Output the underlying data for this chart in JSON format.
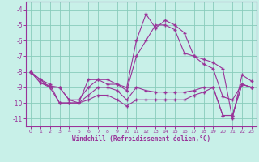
{
  "xlabel": "Windchill (Refroidissement éolien,°C)",
  "background_color": "#c8f0e8",
  "grid_color": "#88ccbb",
  "line_color": "#993399",
  "hours": [
    0,
    1,
    2,
    3,
    4,
    5,
    6,
    7,
    8,
    9,
    10,
    11,
    12,
    13,
    14,
    15,
    16,
    17,
    18,
    19,
    20,
    21,
    22,
    23
  ],
  "curve1": [
    -8.0,
    -8.5,
    -8.8,
    -10.0,
    -10.0,
    -10.0,
    -8.5,
    -8.5,
    -8.8,
    -8.8,
    -9.0,
    -6.0,
    -4.3,
    -5.2,
    -4.7,
    -5.0,
    -5.5,
    -7.0,
    -7.2,
    -7.4,
    -7.8,
    -11.0,
    -8.2,
    -8.6
  ],
  "curve2": [
    -8.0,
    -8.7,
    -8.9,
    -9.0,
    -9.8,
    -9.8,
    -9.0,
    -8.5,
    -8.5,
    -8.8,
    -9.2,
    -7.0,
    -6.0,
    -5.0,
    -5.0,
    -5.3,
    -6.8,
    -7.0,
    -7.5,
    -7.8,
    -9.6,
    -9.8,
    -8.8,
    -9.0
  ],
  "curve3": [
    -8.0,
    -8.7,
    -9.0,
    -9.0,
    -9.8,
    -10.0,
    -9.5,
    -9.0,
    -9.0,
    -9.2,
    -9.8,
    -9.0,
    -9.2,
    -9.3,
    -9.3,
    -9.3,
    -9.3,
    -9.2,
    -9.0,
    -9.0,
    -10.8,
    -10.8,
    -8.8,
    -9.0
  ],
  "curve4": [
    -8.0,
    -8.5,
    -9.0,
    -10.0,
    -10.0,
    -10.0,
    -9.8,
    -9.5,
    -9.5,
    -9.8,
    -10.2,
    -9.8,
    -9.8,
    -9.8,
    -9.8,
    -9.8,
    -9.8,
    -9.5,
    -9.3,
    -9.0,
    -10.8,
    -10.8,
    -8.8,
    -9.0
  ],
  "ylim": [
    -11.5,
    -3.5
  ],
  "yticks": [
    -11,
    -10,
    -9,
    -8,
    -7,
    -6,
    -5,
    -4
  ],
  "xlim": [
    -0.5,
    23.5
  ]
}
